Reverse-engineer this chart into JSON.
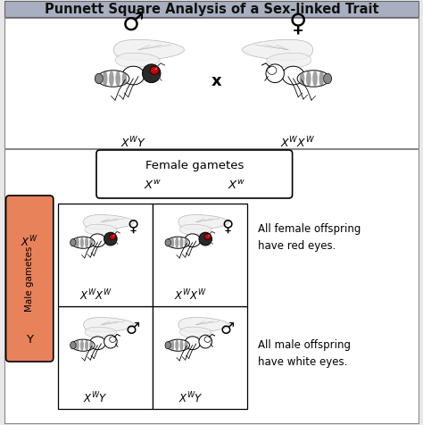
{
  "title": "Punnett Square Analysis of a Sex-linked Trait",
  "title_bg": "#a8afc0",
  "title_fontsize": 10.5,
  "outer_bg": "#e8e8e8",
  "section_bg": "#ffffff",
  "male_gametes_box_color": "#e8825a",
  "result_female": "All female offspring\nhave red eyes.",
  "result_male": "All male offspring\nhave white eyes.",
  "male_symbol": "♂",
  "female_symbol": "♀",
  "female_gametes_label": "Female gametes",
  "male_gametes_label": "Male gametes",
  "cross_symbol": "x"
}
